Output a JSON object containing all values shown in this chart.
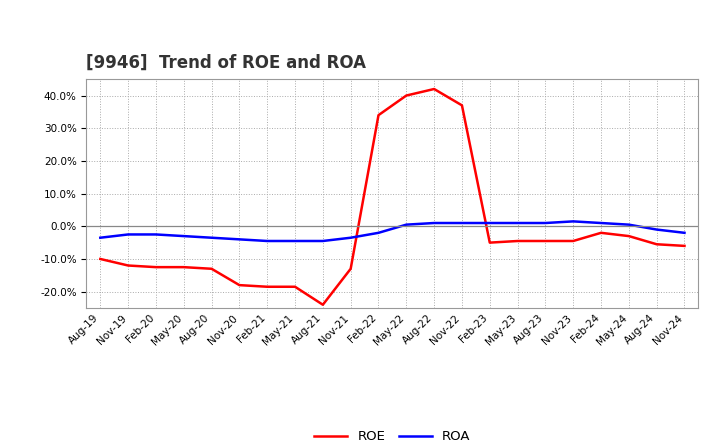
{
  "title": "[9946]  Trend of ROE and ROA",
  "background_color": "#ffffff",
  "plot_bg_color": "#ffffff",
  "grid_color": "#aaaaaa",
  "x_labels": [
    "Aug-19",
    "Nov-19",
    "Feb-20",
    "May-20",
    "Aug-20",
    "Nov-20",
    "Feb-21",
    "May-21",
    "Aug-21",
    "Nov-21",
    "Feb-22",
    "May-22",
    "Aug-22",
    "Nov-22",
    "Feb-23",
    "May-23",
    "Aug-23",
    "Nov-23",
    "Feb-24",
    "May-24",
    "Aug-24",
    "Nov-24"
  ],
  "roe_values": [
    -10.0,
    -12.0,
    -12.5,
    -12.5,
    -13.0,
    -18.0,
    -18.5,
    -18.5,
    -24.0,
    -13.0,
    34.0,
    40.0,
    42.0,
    37.0,
    -5.0,
    -4.5,
    -4.5,
    -4.5,
    -2.0,
    -3.0,
    -5.5,
    -6.0
  ],
  "roa_values": [
    -3.5,
    -2.5,
    -2.5,
    -3.0,
    -3.5,
    -4.0,
    -4.5,
    -4.5,
    -4.5,
    -3.5,
    -2.0,
    0.5,
    1.0,
    1.0,
    1.0,
    1.0,
    1.0,
    1.5,
    1.0,
    0.5,
    -1.0,
    -2.0
  ],
  "roe_color": "#ff0000",
  "roa_color": "#0000ff",
  "ylim": [
    -25,
    45
  ],
  "yticks": [
    -20.0,
    -10.0,
    0.0,
    10.0,
    20.0,
    30.0,
    40.0
  ],
  "legend_labels": [
    "ROE",
    "ROA"
  ],
  "line_width": 1.8,
  "title_fontsize": 12,
  "tick_fontsize": 7.5
}
